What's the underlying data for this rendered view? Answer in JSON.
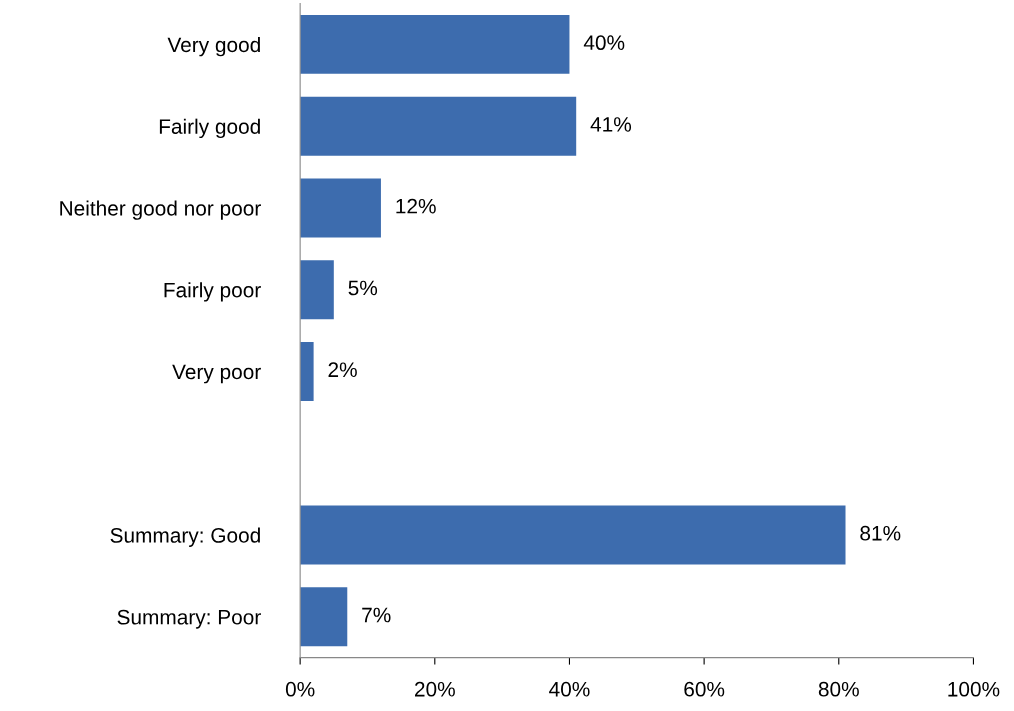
{
  "chart_data": {
    "type": "bar",
    "orientation": "horizontal",
    "categories": [
      "Very good",
      "Fairly good",
      "Neither good nor poor",
      "Fairly poor",
      "Very poor",
      null,
      "Summary: Good",
      "Summary: Poor"
    ],
    "values": [
      40,
      41,
      12,
      5,
      2,
      null,
      81,
      7
    ],
    "value_labels": [
      "40%",
      "41%",
      "12%",
      "5%",
      "2%",
      null,
      "81%",
      "7%"
    ],
    "color": "#3d6cae",
    "xlim": [
      0,
      100
    ],
    "xticks": [
      {
        "value": 0,
        "label": "0%"
      },
      {
        "value": 20,
        "label": "20%"
      },
      {
        "value": 40,
        "label": "40%"
      },
      {
        "value": 60,
        "label": "60%"
      },
      {
        "value": 80,
        "label": "80%"
      },
      {
        "value": 100,
        "label": "100%"
      }
    ],
    "grid": false,
    "legend": false
  }
}
